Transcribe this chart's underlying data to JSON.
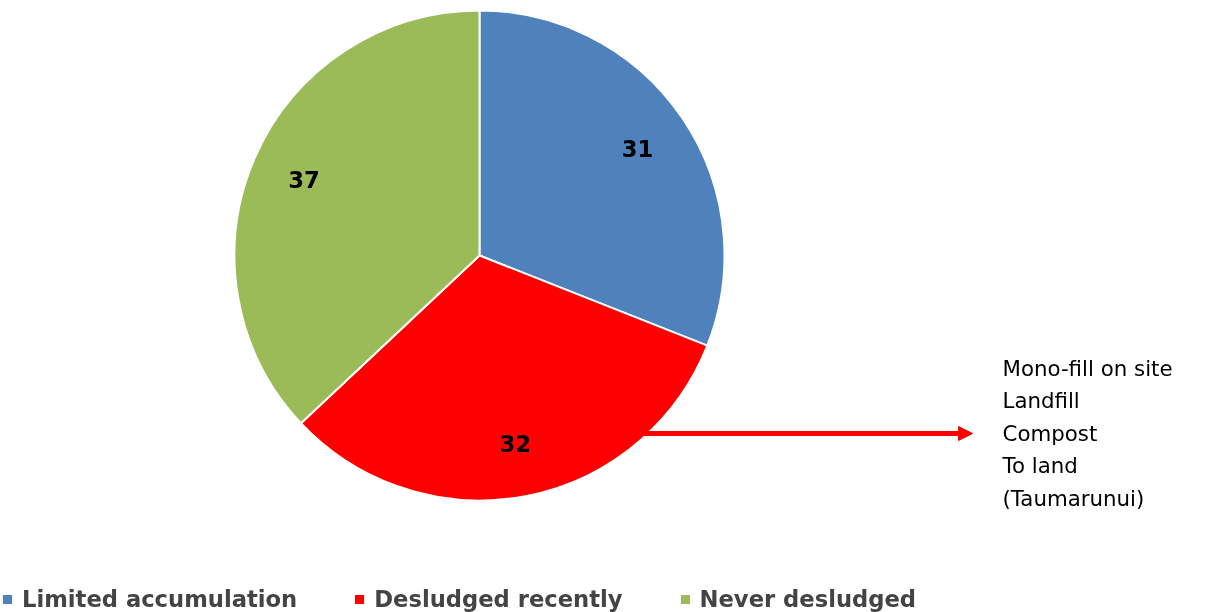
{
  "chart_data": {
    "type": "pie",
    "categories": [
      "Limited accumulation",
      "Desludged recently",
      "Never desludged"
    ],
    "values": [
      31,
      32,
      37
    ],
    "colors": [
      "#4f81bd",
      "#ff0000",
      "#9bbb59"
    ],
    "data_labels": true,
    "legend": "bottom left",
    "annotations": [
      "Mono-fill on site\nLandfill\nCompost\nTo land\n(Taumarunui)"
    ]
  }
}
